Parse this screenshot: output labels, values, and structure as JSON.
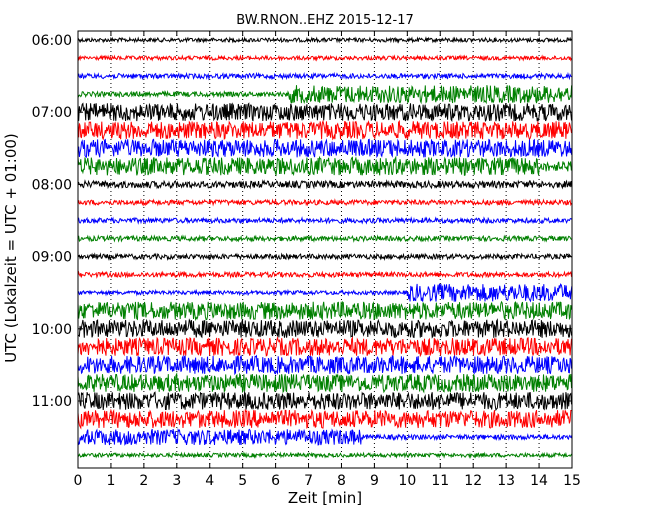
{
  "chart_data": {
    "type": "line",
    "title": "BW.RNON..EHZ 2015-12-17",
    "xlabel": "Zeit  [min]",
    "ylabel": "UTC (Lokalzeit = UTC + 01:00)",
    "xlim": [
      0,
      15
    ],
    "x_ticks": [
      "0",
      "1",
      "2",
      "3",
      "4",
      "5",
      "6",
      "7",
      "8",
      "9",
      "10",
      "11",
      "12",
      "13",
      "14",
      "15"
    ],
    "y_ticks": [
      "06:00",
      "07:00",
      "08:00",
      "09:00",
      "10:00",
      "11:00"
    ],
    "grid": "vertical dotted",
    "colors": [
      "#000000",
      "#ff0000",
      "#0000ff",
      "#008000"
    ],
    "traces": [
      {
        "label": "06:00",
        "color": "#000000",
        "segments": [
          [
            0,
            15,
            2
          ]
        ]
      },
      {
        "label": "06:15",
        "color": "#ff0000",
        "segments": [
          [
            0,
            15,
            2
          ]
        ]
      },
      {
        "label": "06:30",
        "color": "#0000ff",
        "segments": [
          [
            0,
            15,
            2.5
          ]
        ]
      },
      {
        "label": "06:45",
        "color": "#008000",
        "segments": [
          [
            0,
            6.4,
            2.5
          ],
          [
            6.4,
            15,
            9
          ]
        ]
      },
      {
        "label": "07:00",
        "color": "#000000",
        "segments": [
          [
            0,
            15,
            9
          ]
        ]
      },
      {
        "label": "07:15",
        "color": "#ff0000",
        "segments": [
          [
            0,
            15,
            9
          ]
        ]
      },
      {
        "label": "07:30",
        "color": "#0000ff",
        "segments": [
          [
            0,
            15,
            9
          ]
        ]
      },
      {
        "label": "07:45",
        "color": "#008000",
        "segments": [
          [
            0,
            14,
            9
          ],
          [
            14,
            15,
            5
          ]
        ]
      },
      {
        "label": "08:00",
        "color": "#000000",
        "segments": [
          [
            0,
            15,
            3.5
          ]
        ]
      },
      {
        "label": "08:15",
        "color": "#ff0000",
        "segments": [
          [
            0,
            15,
            2.5
          ]
        ]
      },
      {
        "label": "08:30",
        "color": "#0000ff",
        "segments": [
          [
            0,
            15,
            2.5
          ]
        ]
      },
      {
        "label": "08:45",
        "color": "#008000",
        "segments": [
          [
            0,
            15,
            2.5
          ]
        ]
      },
      {
        "label": "09:00",
        "color": "#000000",
        "segments": [
          [
            0,
            15,
            2.5
          ]
        ]
      },
      {
        "label": "09:15",
        "color": "#ff0000",
        "segments": [
          [
            0,
            15,
            2.5
          ]
        ]
      },
      {
        "label": "09:30",
        "color": "#0000ff",
        "segments": [
          [
            0,
            10,
            2
          ],
          [
            10,
            15,
            9
          ]
        ]
      },
      {
        "label": "09:45",
        "color": "#008000",
        "segments": [
          [
            0,
            15,
            9
          ]
        ]
      },
      {
        "label": "10:00",
        "color": "#000000",
        "segments": [
          [
            0,
            15,
            9
          ]
        ]
      },
      {
        "label": "10:15",
        "color": "#ff0000",
        "segments": [
          [
            0,
            15,
            9
          ]
        ]
      },
      {
        "label": "10:30",
        "color": "#0000ff",
        "segments": [
          [
            0,
            15,
            9
          ]
        ]
      },
      {
        "label": "10:45",
        "color": "#008000",
        "segments": [
          [
            0,
            15,
            9
          ]
        ]
      },
      {
        "label": "11:00",
        "color": "#000000",
        "segments": [
          [
            0,
            15,
            9
          ]
        ]
      },
      {
        "label": "11:15",
        "color": "#ff0000",
        "segments": [
          [
            0,
            15,
            9
          ]
        ]
      },
      {
        "label": "11:30",
        "color": "#0000ff",
        "segments": [
          [
            0,
            8.6,
            8
          ],
          [
            8.6,
            15,
            2.5
          ]
        ]
      },
      {
        "label": "11:45",
        "color": "#008000",
        "segments": [
          [
            0,
            15,
            2
          ]
        ]
      }
    ]
  }
}
